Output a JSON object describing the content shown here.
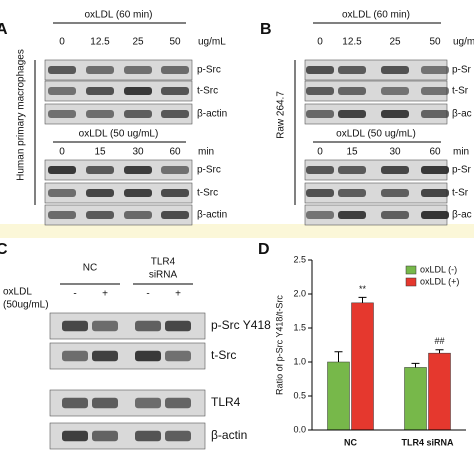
{
  "panels": {
    "a": {
      "label": "A",
      "cell_type": "Human primary macrophages",
      "top": {
        "treatment": "oxLDL (60 min)",
        "doses": [
          "0",
          "12.5",
          "25",
          "50"
        ],
        "unit": "ug/mL",
        "rows": [
          "p-Src",
          "t-Src",
          "β-actin"
        ]
      },
      "bottom": {
        "treatment": "oxLDL (50 ug/mL)",
        "doses": [
          "0",
          "15",
          "30",
          "60"
        ],
        "unit": "min",
        "rows": [
          "p-Src",
          "t-Src",
          "β-actin"
        ]
      }
    },
    "b": {
      "label": "B",
      "cell_type": "Raw 264.7",
      "top": {
        "treatment": "oxLDL (60 min)",
        "doses": [
          "0",
          "12.5",
          "25",
          "50"
        ],
        "unit": "ug/m",
        "rows": [
          "p-Sr",
          "t-Sr",
          "β-ac"
        ]
      },
      "bottom": {
        "treatment": "oxLDL (50 ug/mL)",
        "doses": [
          "0",
          "15",
          "30",
          "60"
        ],
        "unit": "min",
        "rows": [
          "p-Sr",
          "t-Sr",
          "β-ac"
        ]
      }
    },
    "c": {
      "label": "C",
      "groups": [
        [
          "NC"
        ],
        [
          "TLR4",
          "siRNA"
        ]
      ],
      "treatment": [
        "oxLDL",
        "(50ug/mL)"
      ],
      "signs": [
        "-",
        "+",
        "-",
        "+"
      ],
      "rows": [
        "p-Src Y418",
        "t-Src",
        "TLR4",
        "β-actin"
      ]
    },
    "d": {
      "label": "D"
    }
  },
  "chart_data": {
    "type": "bar",
    "y_label": "Ratio of p-Src Y418/t-Src",
    "categories": [
      "NC",
      "TLR4 siRNA"
    ],
    "series": [
      {
        "name": "oxLDL (-)",
        "color": "#77b84a",
        "values": [
          1.0,
          0.92
        ],
        "errors": [
          0.15,
          0.06
        ]
      },
      {
        "name": "oxLDL (+)",
        "color": "#e5382e",
        "values": [
          1.87,
          1.13
        ],
        "errors": [
          0.08,
          0.05
        ],
        "significance": [
          "**",
          "##"
        ]
      }
    ],
    "ylim": [
      0,
      2.5
    ],
    "yticks": [
      {
        "value": 0,
        "label": "0.0"
      },
      {
        "value": 0.5,
        "label": "0.5"
      },
      {
        "value": 1,
        "label": "1.0"
      },
      {
        "value": 1.5,
        "label": "1.5"
      },
      {
        "value": 2,
        "label": "2.0"
      },
      {
        "value": 2.5,
        "label": "2.5"
      }
    ],
    "legend": "top-right"
  }
}
